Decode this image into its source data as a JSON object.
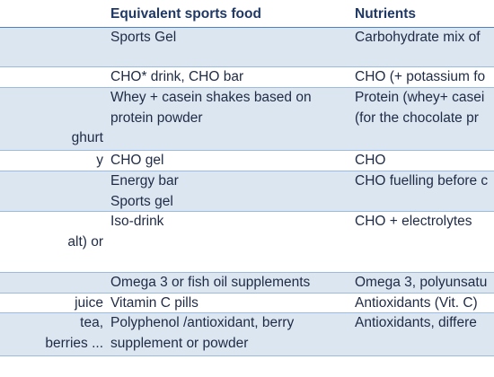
{
  "table": {
    "columns": [
      "Equivalent sports food",
      "Nutrients"
    ],
    "rows": [
      {
        "food": [
          "Sports Gel"
        ],
        "nutrients": [
          "Carbohydrate mix of"
        ]
      },
      {
        "food": [
          "CHO* drink, CHO bar"
        ],
        "nutrients": [
          "CHO (+ potassium fo"
        ]
      },
      {
        "left": [
          "ghurt"
        ],
        "food": [
          "Whey + casein shakes based on",
          "protein powder"
        ],
        "nutrients": [
          "Protein (whey+ casei",
          "(for the chocolate pr"
        ]
      },
      {
        "left": [
          "y"
        ],
        "food": [
          "CHO gel"
        ],
        "nutrients": [
          "CHO"
        ]
      },
      {
        "food": [
          "Energy bar",
          "Sports gel"
        ],
        "nutrients": [
          "CHO fuelling before c"
        ]
      },
      {
        "left": [
          "alt) or"
        ],
        "food": [
          "Iso-drink"
        ],
        "nutrients": [
          "CHO + electrolytes"
        ]
      },
      {
        "food": [
          "Omega 3 or fish oil supplements"
        ],
        "nutrients": [
          "Omega 3, polyunsatu"
        ]
      },
      {
        "left": [
          "juice"
        ],
        "food": [
          "Vitamin C pills"
        ],
        "nutrients": [
          "Antioxidants (Vit. C)"
        ]
      },
      {
        "left": [
          "tea,",
          "berries ..."
        ],
        "food": [
          "Polyphenol /antioxidant, berry",
          "supplement or powder"
        ],
        "nutrients": [
          "Antioxidants, differe"
        ]
      }
    ]
  }
}
